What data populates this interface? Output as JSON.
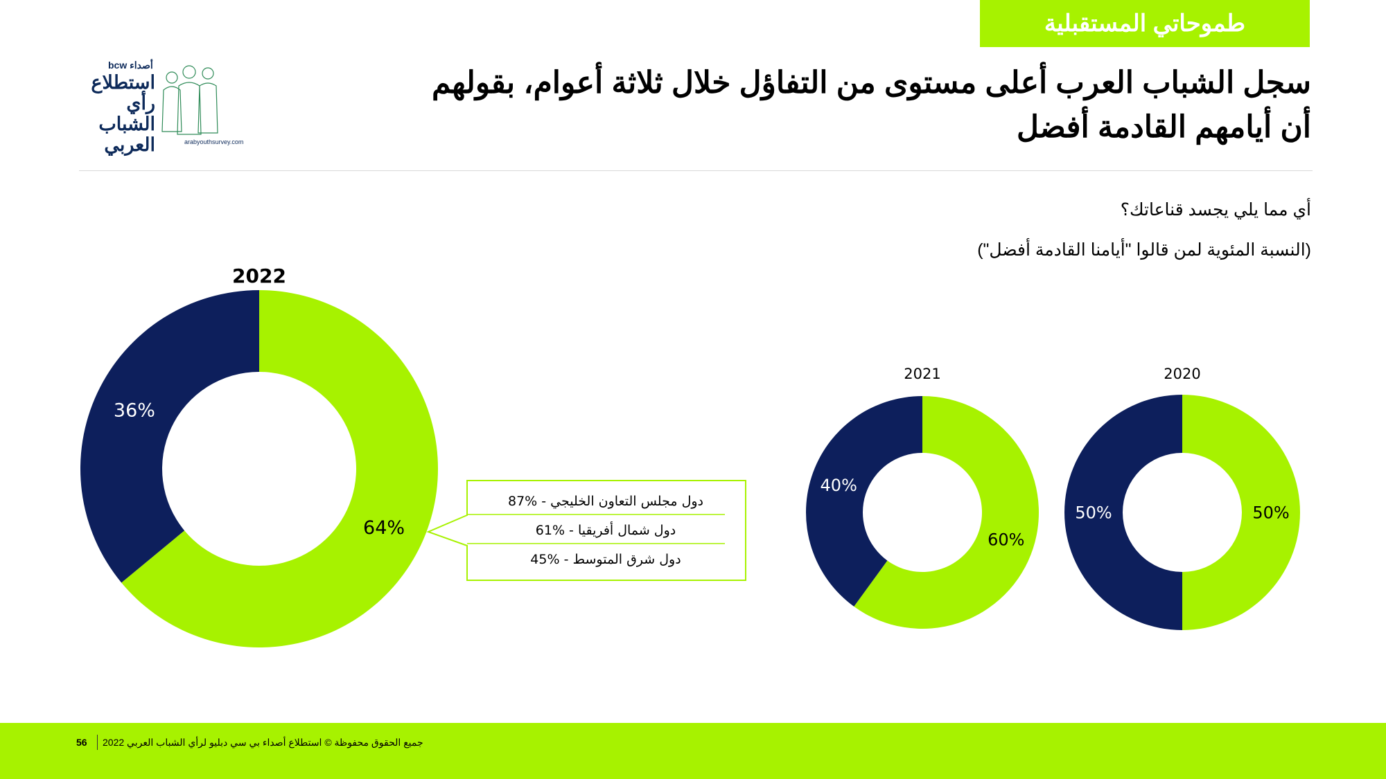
{
  "header": {
    "tag": "طموحاتي المستقبلية",
    "title": "سجل الشباب العرب أعلى مستوى من التفاؤل خلال ثلاثة أعوام، بقولهم أن أيامهم القادمة أفضل",
    "question": "أي مما يلي يجسد قناعاتك؟",
    "subnote": "(النسبة المئوية لمن قالوا \"أيامنا القادمة أفضل\")"
  },
  "logo": {
    "brand": "أصداء bcw",
    "line1": "استطلاع",
    "line2": "رأي الشباب",
    "line3": "العربي",
    "url": "arabyouthsurvey.com"
  },
  "colors": {
    "green": "#a7f200",
    "navy": "#0d1f5c",
    "callout_border": "#a7f200"
  },
  "chart_data": [
    {
      "type": "pie",
      "style": "donut",
      "title": "2022",
      "slices": [
        {
          "label": "64%",
          "value": 64,
          "color": "#a7f200"
        },
        {
          "label": "36%",
          "value": 36,
          "color": "#0d1f5c"
        }
      ],
      "breakdown": [
        {
          "value": "87%",
          "label": "دول مجلس التعاون الخليجي"
        },
        {
          "value": "61%",
          "label": "دول شمال أفريقيا"
        },
        {
          "value": "45%",
          "label": "دول شرق المتوسط"
        }
      ]
    },
    {
      "type": "pie",
      "style": "donut",
      "title": "2021",
      "slices": [
        {
          "label": "60%",
          "value": 60,
          "color": "#a7f200"
        },
        {
          "label": "40%",
          "value": 40,
          "color": "#0d1f5c"
        }
      ]
    },
    {
      "type": "pie",
      "style": "donut",
      "title": "2020",
      "slices": [
        {
          "label": "50%",
          "value": 50,
          "color": "#a7f200"
        },
        {
          "label": "50%",
          "value": 50,
          "color": "#0d1f5c"
        }
      ]
    }
  ],
  "footer": {
    "page": "56",
    "copyright": "جميع الحقوق محفوظة © استطلاع أصداء بي سي دبليو لرأي الشباب العربي 2022"
  }
}
